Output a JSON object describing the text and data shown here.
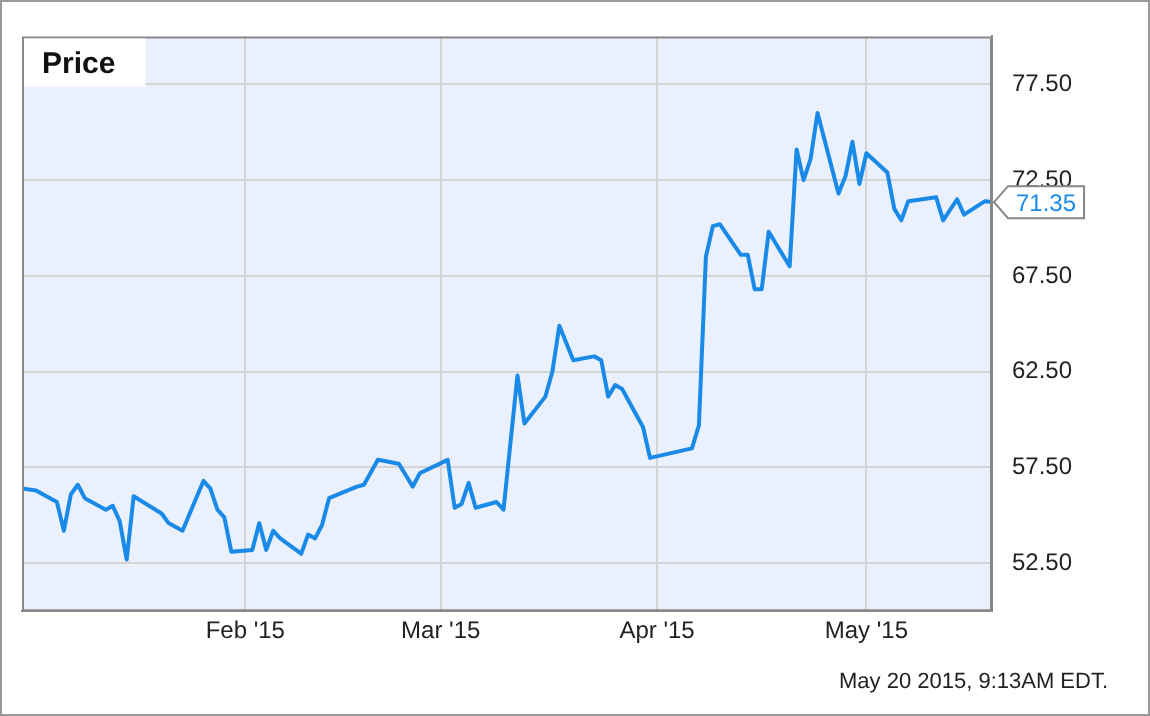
{
  "chart_data": {
    "type": "line",
    "title": "Price",
    "x": [
      "2014-12-31",
      "2015-01-02",
      "2015-01-05",
      "2015-01-06",
      "2015-01-07",
      "2015-01-08",
      "2015-01-09",
      "2015-01-12",
      "2015-01-13",
      "2015-01-14",
      "2015-01-15",
      "2015-01-16",
      "2015-01-20",
      "2015-01-21",
      "2015-01-23",
      "2015-01-26",
      "2015-01-27",
      "2015-01-28",
      "2015-01-29",
      "2015-01-30",
      "2015-02-02",
      "2015-02-03",
      "2015-02-04",
      "2015-02-05",
      "2015-02-06",
      "2015-02-09",
      "2015-02-10",
      "2015-02-11",
      "2015-02-12",
      "2015-02-13",
      "2015-02-17",
      "2015-02-18",
      "2015-02-20",
      "2015-02-23",
      "2015-02-24",
      "2015-02-25",
      "2015-02-26",
      "2015-03-02",
      "2015-03-03",
      "2015-03-04",
      "2015-03-05",
      "2015-03-06",
      "2015-03-09",
      "2015-03-10",
      "2015-03-12",
      "2015-03-13",
      "2015-03-16",
      "2015-03-17",
      "2015-03-18",
      "2015-03-20",
      "2015-03-23",
      "2015-03-24",
      "2015-03-25",
      "2015-03-26",
      "2015-03-27",
      "2015-03-30",
      "2015-03-31",
      "2015-04-06",
      "2015-04-07",
      "2015-04-08",
      "2015-04-09",
      "2015-04-10",
      "2015-04-13",
      "2015-04-14",
      "2015-04-15",
      "2015-04-16",
      "2015-04-17",
      "2015-04-20",
      "2015-04-21",
      "2015-04-22",
      "2015-04-23",
      "2015-04-24",
      "2015-04-27",
      "2015-04-28",
      "2015-04-29",
      "2015-04-30",
      "2015-05-01",
      "2015-05-04",
      "2015-05-05",
      "2015-05-06",
      "2015-05-07",
      "2015-05-11",
      "2015-05-12",
      "2015-05-14",
      "2015-05-15",
      "2015-05-18",
      "2015-05-19"
    ],
    "series": [
      {
        "color": "#1a8ae8",
        "values": [
          56.4,
          56.3,
          55.7,
          54.2,
          56.1,
          56.6,
          55.9,
          55.3,
          55.5,
          54.7,
          52.7,
          56.0,
          55.1,
          54.6,
          54.2,
          56.8,
          56.4,
          55.3,
          54.9,
          53.1,
          53.2,
          54.6,
          53.2,
          54.2,
          53.8,
          53.0,
          54.0,
          53.8,
          54.5,
          55.9,
          56.5,
          56.6,
          57.9,
          57.7,
          57.1,
          56.5,
          57.2,
          57.9,
          55.4,
          55.6,
          56.7,
          55.4,
          55.7,
          55.3,
          62.3,
          59.8,
          61.2,
          62.5,
          64.9,
          63.1,
          63.3,
          63.1,
          61.2,
          61.8,
          61.6,
          59.6,
          58.0,
          58.5,
          59.7,
          68.5,
          70.1,
          70.2,
          68.6,
          68.6,
          66.8,
          66.8,
          69.8,
          68.0,
          74.1,
          72.5,
          73.6,
          76.0,
          71.8,
          72.7,
          74.5,
          72.3,
          73.9,
          72.9,
          71.0,
          70.4,
          71.4,
          71.6,
          70.4,
          71.5,
          70.7,
          71.4,
          71.35
        ],
        "value_labels": [
          null,
          null,
          null,
          null,
          null,
          null,
          null,
          null,
          null,
          null,
          null,
          null,
          null,
          null,
          null,
          null,
          null,
          null,
          null,
          null,
          null,
          null,
          null,
          null,
          null,
          null,
          null,
          null,
          null,
          null,
          null,
          null,
          null,
          null,
          null,
          null,
          null,
          null,
          null,
          null,
          null,
          null,
          null,
          null,
          null,
          null,
          null,
          null,
          null,
          null,
          null,
          null,
          null,
          null,
          null,
          null,
          null,
          null,
          null,
          null,
          null,
          null,
          null,
          null,
          null,
          null,
          null,
          null,
          null,
          null,
          null,
          null,
          null,
          null,
          null,
          null,
          null,
          null,
          null,
          null,
          null,
          null,
          null,
          null,
          null,
          null,
          "71.35"
        ]
      }
    ],
    "xlim": [
      "2014-12-31",
      "2015-05-19"
    ],
    "xticks": [
      {
        "value": "2015-02-01",
        "label": "Feb '15"
      },
      {
        "value": "2015-03-01",
        "label": "Mar '15"
      },
      {
        "value": "2015-04-01",
        "label": "Apr '15"
      },
      {
        "value": "2015-05-01",
        "label": "May '15"
      }
    ],
    "ylim": [
      50,
      80
    ],
    "yticks": [
      {
        "value": 52.5,
        "label": "52.50"
      },
      {
        "value": 57.5,
        "label": "57.50"
      },
      {
        "value": 62.5,
        "label": "62.50"
      },
      {
        "value": 67.5,
        "label": "67.50"
      },
      {
        "value": 72.5,
        "label": "72.50"
      },
      {
        "value": 77.5,
        "label": "77.50"
      }
    ],
    "grid": true,
    "legend": false,
    "marker": "none",
    "line_style": "solid",
    "annotations": [
      "May 20 2015, 9:13AM EDT."
    ]
  }
}
